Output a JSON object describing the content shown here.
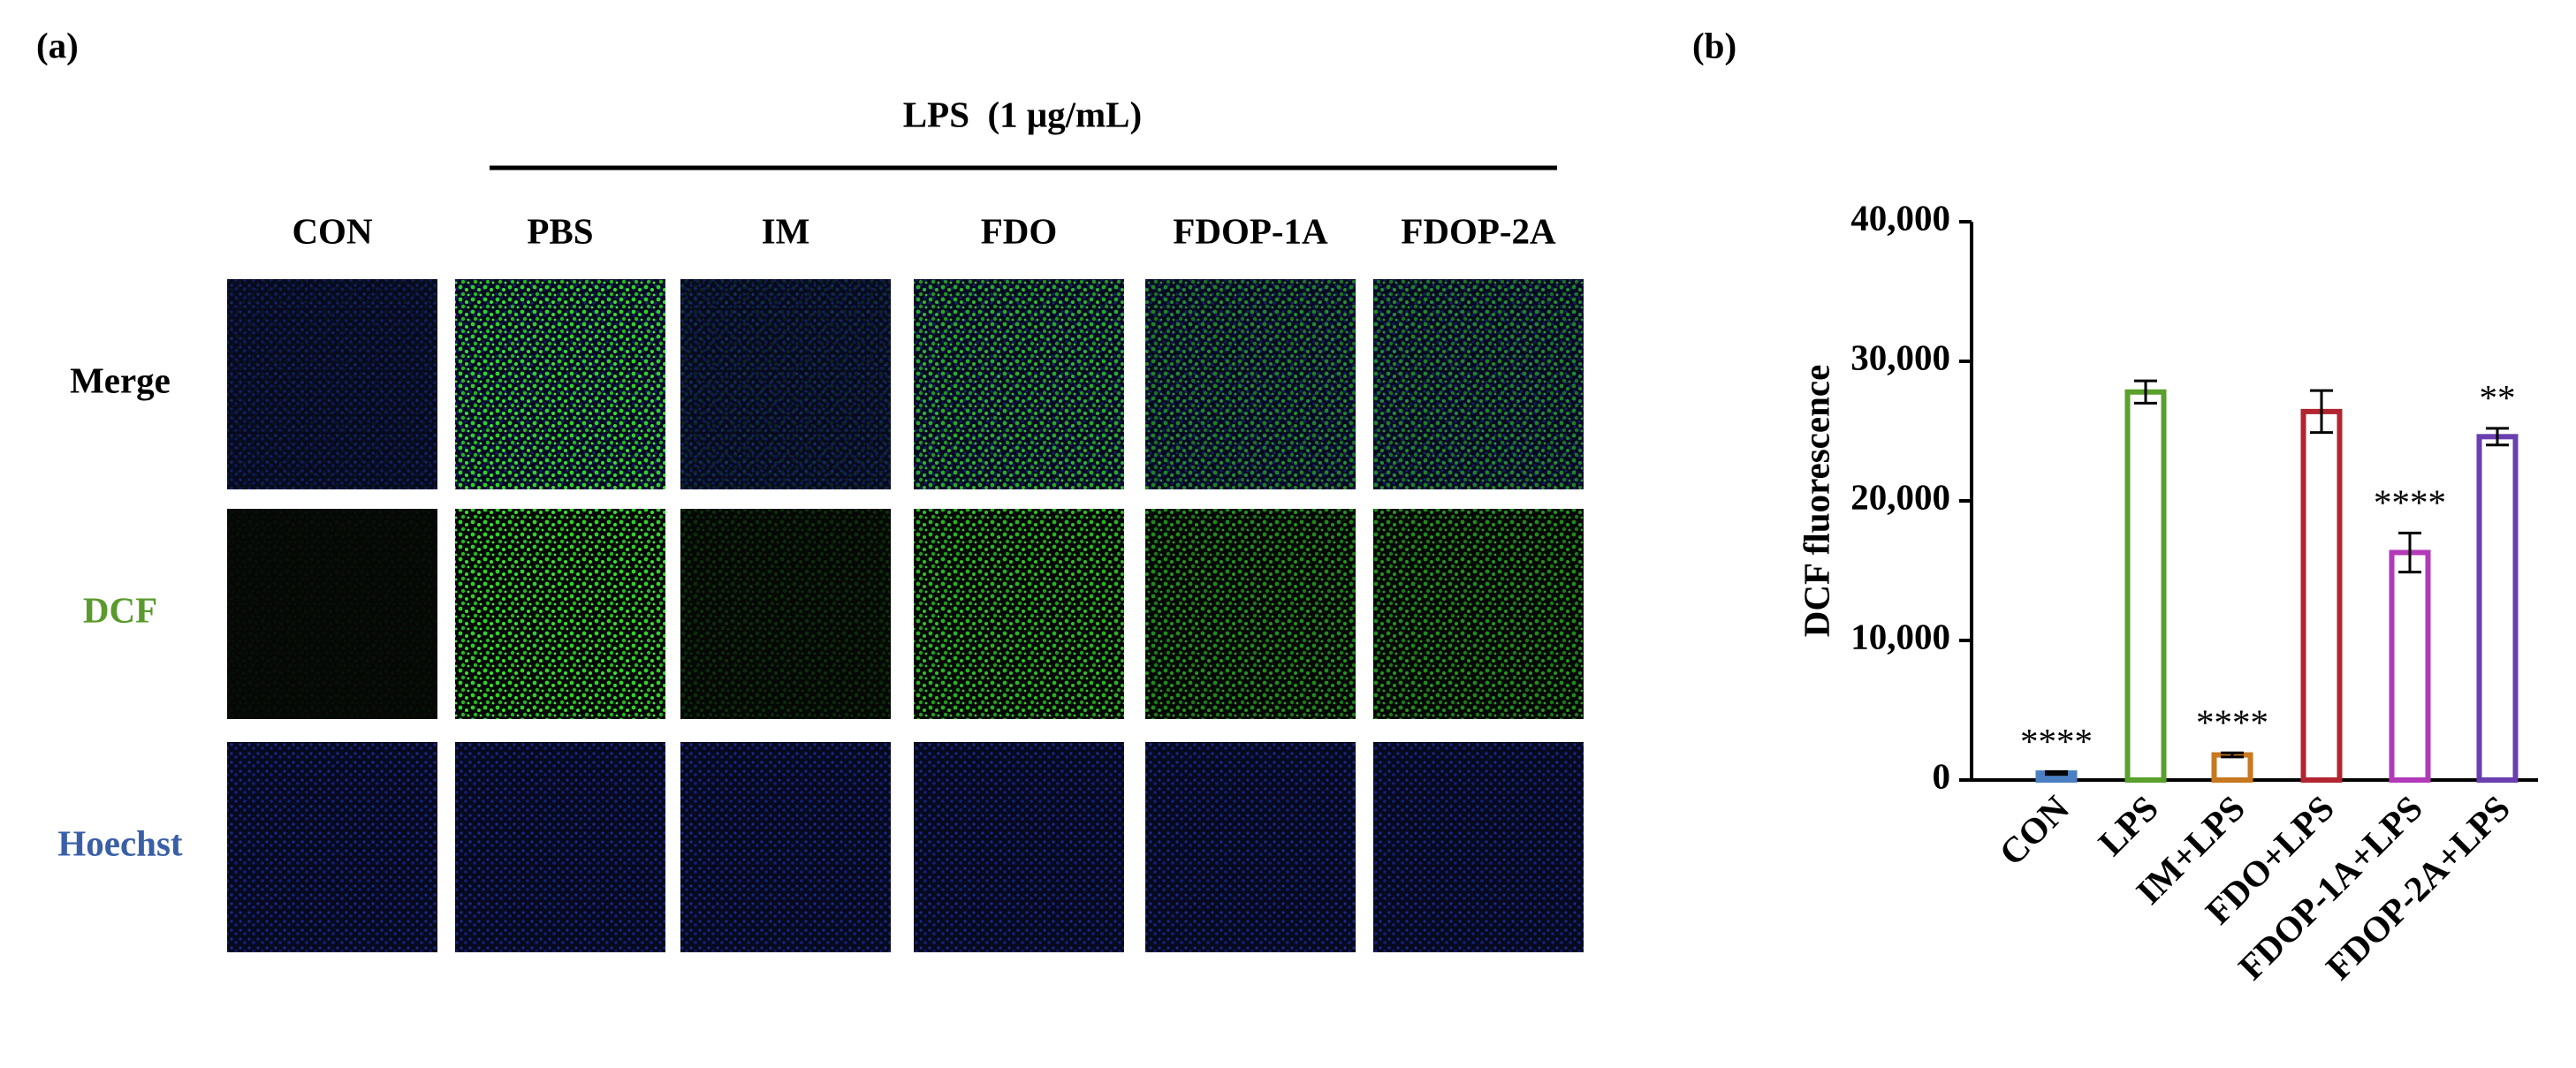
{
  "panel_a": {
    "label": "(a)",
    "treatment": "LPS  (1 μg/mL)",
    "columns": [
      "CON",
      "PBS",
      "IM",
      "FDO",
      "FDOP-1A",
      "FDOP-2A"
    ],
    "rows": [
      "Merge",
      "DCF",
      "Hoechst"
    ]
  },
  "chart_data": {
    "type": "bar",
    "panel_label": "(b)",
    "y_label": "DCF fluorescence",
    "categories": [
      "CON",
      "LPS",
      "IM+LPS",
      "FDO+LPS",
      "FDOP-1A+LPS",
      "FDOP-2A+LPS"
    ],
    "values": [
      500,
      27800,
      1800,
      26400,
      16300,
      24600
    ],
    "errors": [
      100,
      800,
      150,
      1500,
      1400,
      600
    ],
    "annotations": [
      "****",
      null,
      "****",
      null,
      "****",
      "**"
    ],
    "colors": [
      "#4a7fc1",
      "#5aa02c",
      "#c8781e",
      "#b22530",
      "#b23ab8",
      "#6a3fb0"
    ],
    "ylim": [
      0,
      40000
    ],
    "yticks": [
      0,
      {
        "value": 10000,
        "label": "10,000"
      },
      {
        "value": 20000,
        "label": "20,000"
      },
      {
        "value": 30000,
        "label": "30,000"
      },
      {
        "value": 40000,
        "label": "40,000"
      }
    ]
  }
}
